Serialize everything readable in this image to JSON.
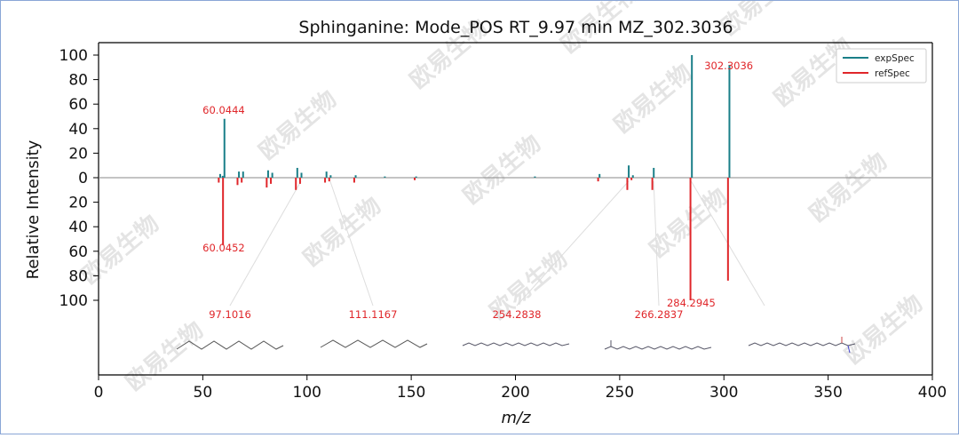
{
  "chart_data": {
    "type": "bar",
    "title": "Sphinganine: Mode_POS  RT_9.97 min  MZ_302.3036",
    "xlabel": "m/z",
    "ylabel": "Relative Intensity",
    "xlim": [
      0,
      400
    ],
    "ylim_top": [
      0,
      110
    ],
    "ylim_bottom": [
      0,
      110
    ],
    "x_ticks": [
      "0",
      "50",
      "100",
      "150",
      "200",
      "250",
      "300",
      "350",
      "400"
    ],
    "y_ticks_top": [
      "0",
      "20",
      "40",
      "60",
      "80",
      "100"
    ],
    "y_ticks_bottom": [
      "20",
      "40",
      "60",
      "80",
      "100"
    ],
    "legend_position": "top-right",
    "series": [
      {
        "name": "expSpec",
        "color": "#1a7f88",
        "x": [
          58.0,
          59.2,
          60.0444,
          67.0,
          69.0,
          81.0,
          83.0,
          95.0,
          97.0,
          109.0,
          111.0,
          123.0,
          137.0,
          152.0,
          209.0,
          240.0,
          254.0,
          256.0,
          266.0,
          284.2945,
          302.3036
        ],
        "values": [
          3,
          1.5,
          48,
          5,
          5,
          6,
          4,
          8,
          4,
          5,
          2,
          2,
          1,
          1,
          1,
          3,
          10,
          2,
          8,
          100,
          92
        ]
      },
      {
        "name": "refSpec",
        "color": "#e0262a",
        "x": [
          58.0,
          60.0452,
          67.0,
          69.0,
          81.0,
          83.0,
          95.0,
          97.0,
          109.0,
          111.0,
          123.0,
          152.0,
          240.0,
          254.0,
          256.0,
          266.0,
          284.2945,
          302.3036
        ],
        "values": [
          4,
          55,
          6,
          4,
          8,
          5,
          10,
          5,
          4,
          3,
          4,
          2,
          3,
          10,
          2,
          10,
          100,
          84
        ]
      }
    ],
    "peak_labels": [
      {
        "text": "60.0444",
        "x": 60.0444,
        "y": 48,
        "side": "top"
      },
      {
        "text": "60.0452",
        "x": 60.0452,
        "y": 55,
        "side": "bottom"
      },
      {
        "text": "302.3036",
        "x": 302.3036,
        "y": 92,
        "side": "top"
      },
      {
        "text": "284.2945",
        "x": 284.2945,
        "y": 100,
        "side": "bottom"
      }
    ],
    "fragment_labels": [
      {
        "text": "97.1016",
        "peak": 97.1016
      },
      {
        "text": "111.1167",
        "peak": 111.1167
      },
      {
        "text": "254.2838",
        "peak": 254.2838
      },
      {
        "text": "266.2837",
        "peak": 266.2837
      },
      {
        "text": "",
        "peak": 284.2945
      }
    ],
    "grid": false
  },
  "watermark": "欧易生物"
}
